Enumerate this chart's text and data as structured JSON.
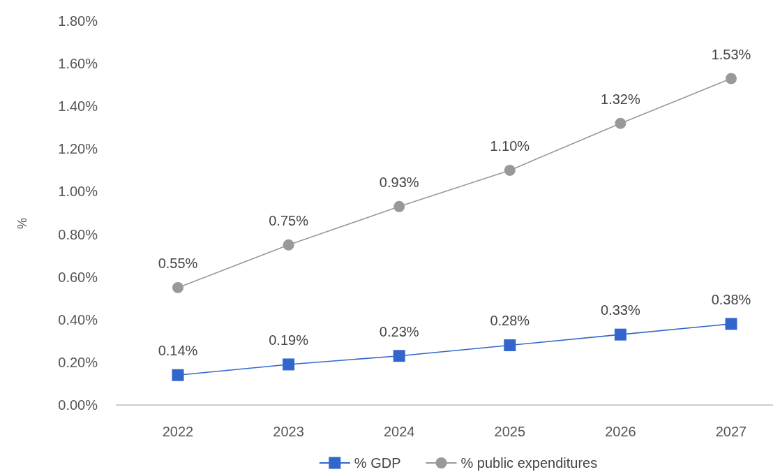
{
  "chart_data": {
    "type": "line",
    "ylabel": "%",
    "categories": [
      "2022",
      "2023",
      "2024",
      "2025",
      "2026",
      "2027"
    ],
    "series": [
      {
        "name": "% GDP",
        "color": "#3366cc",
        "marker": "square",
        "values": [
          0.14,
          0.19,
          0.23,
          0.28,
          0.33,
          0.38
        ],
        "value_labels": [
          "0.14%",
          "0.19%",
          "0.23%",
          "0.28%",
          "0.33%",
          "0.38%"
        ]
      },
      {
        "name": "% public expenditures",
        "color": "#999999",
        "marker": "circle",
        "values": [
          0.55,
          0.75,
          0.93,
          1.1,
          1.32,
          1.53
        ],
        "value_labels": [
          "0.55%",
          "0.75%",
          "0.93%",
          "1.10%",
          "1.32%",
          "1.53%"
        ]
      }
    ],
    "ylim": [
      0,
      1.8
    ],
    "yticks": [
      {
        "value": 0,
        "label": "0.00%"
      },
      {
        "value": 0.2,
        "label": "0.20%"
      },
      {
        "value": 0.4,
        "label": "0.40%"
      },
      {
        "value": 0.6,
        "label": "0.60%"
      },
      {
        "value": 0.8,
        "label": "0.80%"
      },
      {
        "value": 1.0,
        "label": "1.00%"
      },
      {
        "value": 1.2,
        "label": "1.20%"
      },
      {
        "value": 1.4,
        "label": "1.40%"
      },
      {
        "value": 1.6,
        "label": "1.60%"
      },
      {
        "value": 1.8,
        "label": "1.80%"
      }
    ],
    "legend": "bottom",
    "line_style": "solid"
  }
}
